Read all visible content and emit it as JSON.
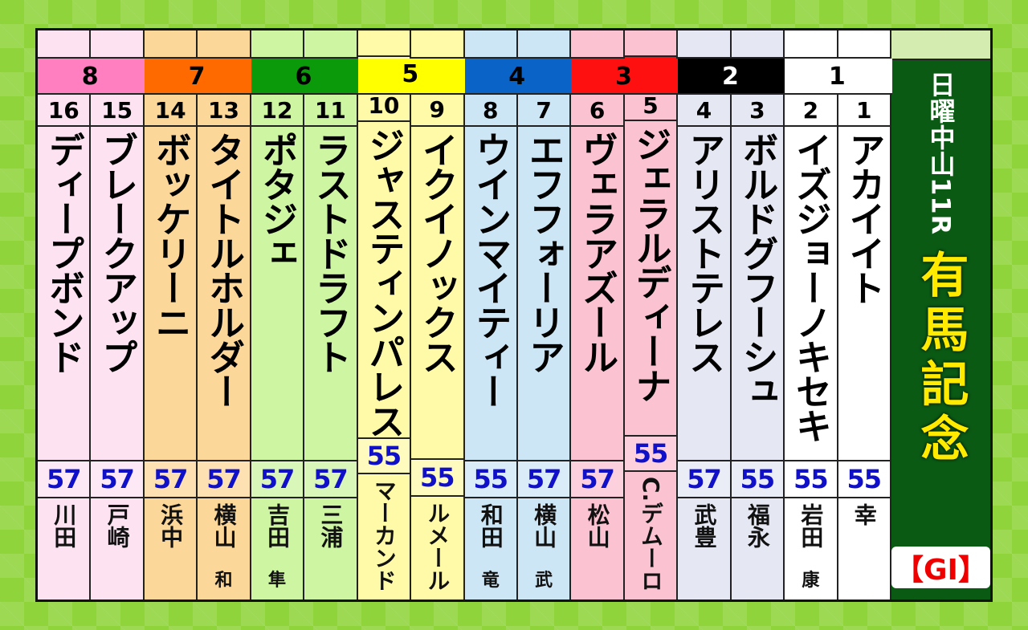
{
  "race": {
    "label": "日曜中山11R",
    "name": "有馬記念",
    "grade": "【GI】"
  },
  "brackets": [
    {
      "number": "8",
      "color": "#ff7fc0",
      "light": "#fde2f2",
      "text_color": "#000"
    },
    {
      "number": "7",
      "color": "#ff6a00",
      "light": "#fcd79a",
      "text_color": "#000"
    },
    {
      "number": "6",
      "color": "#0a9a0a",
      "light": "#cdf5a2",
      "text_color": "#000"
    },
    {
      "number": "5",
      "color": "#ffff00",
      "light": "#fffaa8",
      "text_color": "#000"
    },
    {
      "number": "4",
      "color": "#0a64c8",
      "light": "#cde6f5",
      "text_color": "#000"
    },
    {
      "number": "3",
      "color": "#ff1010",
      "light": "#fbc2d2",
      "text_color": "#000"
    },
    {
      "number": "2",
      "color": "#000000",
      "light": "#e5e7f3",
      "text_color": "#fff"
    },
    {
      "number": "1",
      "color": "#ffffff",
      "light": "#ffffff",
      "text_color": "#000"
    }
  ],
  "horses": [
    {
      "bracket": 0,
      "number": "16",
      "name": "ディープボンド",
      "weight": "57",
      "jockey": "川田",
      "jockey_suffix": ""
    },
    {
      "bracket": 0,
      "number": "15",
      "name": "ブレークアップ",
      "weight": "57",
      "jockey": "戸崎",
      "jockey_suffix": ""
    },
    {
      "bracket": 1,
      "number": "14",
      "name": "ボッケリーニ",
      "weight": "57",
      "jockey": "浜中",
      "jockey_suffix": ""
    },
    {
      "bracket": 1,
      "number": "13",
      "name": "タイトルホルダー",
      "weight": "57",
      "jockey": "横山",
      "jockey_suffix": "和"
    },
    {
      "bracket": 2,
      "number": "12",
      "name": "ポタジェ",
      "weight": "57",
      "jockey": "吉田",
      "jockey_suffix": "隼"
    },
    {
      "bracket": 2,
      "number": "11",
      "name": "ラストドラフト",
      "weight": "57",
      "jockey": "三浦",
      "jockey_suffix": ""
    },
    {
      "bracket": 3,
      "number": "10",
      "name": "ジャスティンパレス",
      "weight": "55",
      "jockey": "マーカンド",
      "jockey_suffix": ""
    },
    {
      "bracket": 3,
      "number": "9",
      "name": "イクイノックス",
      "weight": "55",
      "jockey": "ルメール",
      "jockey_suffix": ""
    },
    {
      "bracket": 4,
      "number": "8",
      "name": "ウインマイティー",
      "weight": "55",
      "jockey": "和田",
      "jockey_suffix": "竜"
    },
    {
      "bracket": 4,
      "number": "7",
      "name": "エフフォーリア",
      "weight": "57",
      "jockey": "横山",
      "jockey_suffix": "武"
    },
    {
      "bracket": 5,
      "number": "6",
      "name": "ヴェラアズール",
      "weight": "57",
      "jockey": "松山",
      "jockey_suffix": ""
    },
    {
      "bracket": 5,
      "number": "5",
      "name": "ジェラルディーナ",
      "weight": "55",
      "jockey": "C.デムーロ",
      "jockey_suffix": ""
    },
    {
      "bracket": 6,
      "number": "4",
      "name": "アリストテレス",
      "weight": "57",
      "jockey": "武豊",
      "jockey_suffix": ""
    },
    {
      "bracket": 6,
      "number": "3",
      "name": "ボルドグフーシュ",
      "weight": "55",
      "jockey": "福永",
      "jockey_suffix": ""
    },
    {
      "bracket": 7,
      "number": "2",
      "name": "イズジョーノキセキ",
      "weight": "55",
      "jockey": "岩田",
      "jockey_suffix": "康"
    },
    {
      "bracket": 7,
      "number": "1",
      "name": "アカイイト",
      "weight": "55",
      "jockey": "幸",
      "jockey_suffix": ""
    }
  ]
}
